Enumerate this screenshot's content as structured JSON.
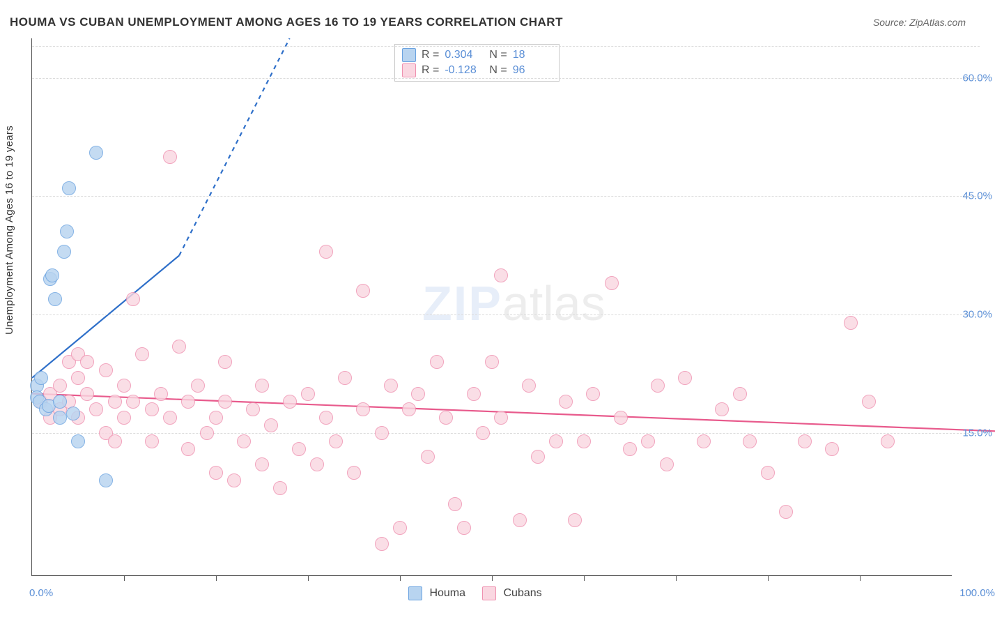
{
  "title": "HOUMA VS CUBAN UNEMPLOYMENT AMONG AGES 16 TO 19 YEARS CORRELATION CHART",
  "source_label": "Source: ZipAtlas.com",
  "ylabel": "Unemployment Among Ages 16 to 19 years",
  "x_axis": {
    "min_label": "0.0%",
    "max_label": "100.0%",
    "tick_positions_pct": [
      0,
      10,
      20,
      30,
      40,
      50,
      60,
      70,
      80,
      90
    ]
  },
  "y_axis": {
    "gridlines_pct": [
      15,
      30,
      45,
      60,
      64
    ],
    "labeled_ticks": [
      {
        "y": 15,
        "label": "15.0%"
      },
      {
        "y": 30,
        "label": "30.0%"
      },
      {
        "y": 45,
        "label": "45.0%"
      },
      {
        "y": 60,
        "label": "60.0%"
      }
    ],
    "domain_min": -3,
    "domain_max": 65
  },
  "series": [
    {
      "name": "Houma",
      "color_fill": "#b8d4f0",
      "color_stroke": "#6ba3e0",
      "line_color": "#2e6fc9",
      "marker_radius": 9,
      "r_value": "0.304",
      "n_value": "18",
      "trend_solid": {
        "x1": 0,
        "y1": 22,
        "x2": 16,
        "y2": 37.5
      },
      "trend_dashed": {
        "x1": 16,
        "y1": 37.5,
        "x2": 28,
        "y2": 65
      },
      "points": [
        {
          "x": 0.5,
          "y": 21.0
        },
        {
          "x": 0.5,
          "y": 19.5
        },
        {
          "x": 0.8,
          "y": 19.0
        },
        {
          "x": 1.0,
          "y": 22.0
        },
        {
          "x": 1.5,
          "y": 18.0
        },
        {
          "x": 1.8,
          "y": 18.5
        },
        {
          "x": 2.0,
          "y": 34.5
        },
        {
          "x": 2.2,
          "y": 35.0
        },
        {
          "x": 2.5,
          "y": 32.0
        },
        {
          "x": 3.0,
          "y": 17.0
        },
        {
          "x": 3.5,
          "y": 38.0
        },
        {
          "x": 3.8,
          "y": 40.5
        },
        {
          "x": 4.0,
          "y": 46.0
        },
        {
          "x": 4.5,
          "y": 17.5
        },
        {
          "x": 5.0,
          "y": 14.0
        },
        {
          "x": 7.0,
          "y": 50.5
        },
        {
          "x": 8.0,
          "y": 9.0
        },
        {
          "x": 3.0,
          "y": 19.0
        }
      ]
    },
    {
      "name": "Cubans",
      "color_fill": "#fad7e1",
      "color_stroke": "#ef91b0",
      "line_color": "#e85a8c",
      "marker_radius": 9,
      "r_value": "-0.128",
      "n_value": "96",
      "trend_solid": {
        "x1": 0,
        "y1": 20,
        "x2": 106,
        "y2": 15.2
      },
      "points": [
        {
          "x": 1,
          "y": 19
        },
        {
          "x": 2,
          "y": 20
        },
        {
          "x": 2,
          "y": 17
        },
        {
          "x": 3,
          "y": 21
        },
        {
          "x": 3,
          "y": 18
        },
        {
          "x": 4,
          "y": 24
        },
        {
          "x": 4,
          "y": 19
        },
        {
          "x": 5,
          "y": 25
        },
        {
          "x": 5,
          "y": 17
        },
        {
          "x": 5,
          "y": 22
        },
        {
          "x": 6,
          "y": 20
        },
        {
          "x": 6,
          "y": 24
        },
        {
          "x": 7,
          "y": 18
        },
        {
          "x": 8,
          "y": 23
        },
        {
          "x": 8,
          "y": 15
        },
        {
          "x": 9,
          "y": 19
        },
        {
          "x": 9,
          "y": 14
        },
        {
          "x": 10,
          "y": 21
        },
        {
          "x": 10,
          "y": 17
        },
        {
          "x": 11,
          "y": 32
        },
        {
          "x": 11,
          "y": 19
        },
        {
          "x": 12,
          "y": 25
        },
        {
          "x": 13,
          "y": 18
        },
        {
          "x": 13,
          "y": 14
        },
        {
          "x": 14,
          "y": 20
        },
        {
          "x": 15,
          "y": 50
        },
        {
          "x": 15,
          "y": 17
        },
        {
          "x": 16,
          "y": 26
        },
        {
          "x": 17,
          "y": 19
        },
        {
          "x": 17,
          "y": 13
        },
        {
          "x": 18,
          "y": 21
        },
        {
          "x": 19,
          "y": 15
        },
        {
          "x": 20,
          "y": 17
        },
        {
          "x": 20,
          "y": 10
        },
        {
          "x": 21,
          "y": 24
        },
        {
          "x": 21,
          "y": 19
        },
        {
          "x": 22,
          "y": 9
        },
        {
          "x": 23,
          "y": 14
        },
        {
          "x": 24,
          "y": 18
        },
        {
          "x": 25,
          "y": 21
        },
        {
          "x": 25,
          "y": 11
        },
        {
          "x": 26,
          "y": 16
        },
        {
          "x": 27,
          "y": 8
        },
        {
          "x": 28,
          "y": 19
        },
        {
          "x": 29,
          "y": 13
        },
        {
          "x": 30,
          "y": 20
        },
        {
          "x": 31,
          "y": 11
        },
        {
          "x": 32,
          "y": 38
        },
        {
          "x": 32,
          "y": 17
        },
        {
          "x": 33,
          "y": 14
        },
        {
          "x": 34,
          "y": 22
        },
        {
          "x": 35,
          "y": 10
        },
        {
          "x": 36,
          "y": 33
        },
        {
          "x": 36,
          "y": 18
        },
        {
          "x": 38,
          "y": 1
        },
        {
          "x": 38,
          "y": 15
        },
        {
          "x": 39,
          "y": 21
        },
        {
          "x": 40,
          "y": 3
        },
        {
          "x": 41,
          "y": 18
        },
        {
          "x": 42,
          "y": 20
        },
        {
          "x": 43,
          "y": 12
        },
        {
          "x": 44,
          "y": 24
        },
        {
          "x": 45,
          "y": 17
        },
        {
          "x": 46,
          "y": 6
        },
        {
          "x": 47,
          "y": 3
        },
        {
          "x": 48,
          "y": 20
        },
        {
          "x": 49,
          "y": 15
        },
        {
          "x": 50,
          "y": 24
        },
        {
          "x": 51,
          "y": 35
        },
        {
          "x": 51,
          "y": 17
        },
        {
          "x": 53,
          "y": 4
        },
        {
          "x": 54,
          "y": 21
        },
        {
          "x": 55,
          "y": 12
        },
        {
          "x": 57,
          "y": 14
        },
        {
          "x": 58,
          "y": 19
        },
        {
          "x": 59,
          "y": 4
        },
        {
          "x": 60,
          "y": 14
        },
        {
          "x": 61,
          "y": 20
        },
        {
          "x": 63,
          "y": 34
        },
        {
          "x": 64,
          "y": 17
        },
        {
          "x": 65,
          "y": 13
        },
        {
          "x": 67,
          "y": 14
        },
        {
          "x": 68,
          "y": 21
        },
        {
          "x": 69,
          "y": 11
        },
        {
          "x": 71,
          "y": 22
        },
        {
          "x": 73,
          "y": 14
        },
        {
          "x": 75,
          "y": 18
        },
        {
          "x": 77,
          "y": 20
        },
        {
          "x": 78,
          "y": 14
        },
        {
          "x": 80,
          "y": 10
        },
        {
          "x": 82,
          "y": 5
        },
        {
          "x": 84,
          "y": 14
        },
        {
          "x": 87,
          "y": 13
        },
        {
          "x": 89,
          "y": 29
        },
        {
          "x": 91,
          "y": 19
        },
        {
          "x": 93,
          "y": 14
        }
      ]
    }
  ],
  "legend_bottom": [
    {
      "label": "Houma"
    },
    {
      "label": "Cubans"
    }
  ],
  "watermark": {
    "part1": "ZIP",
    "part2": "atlas"
  }
}
